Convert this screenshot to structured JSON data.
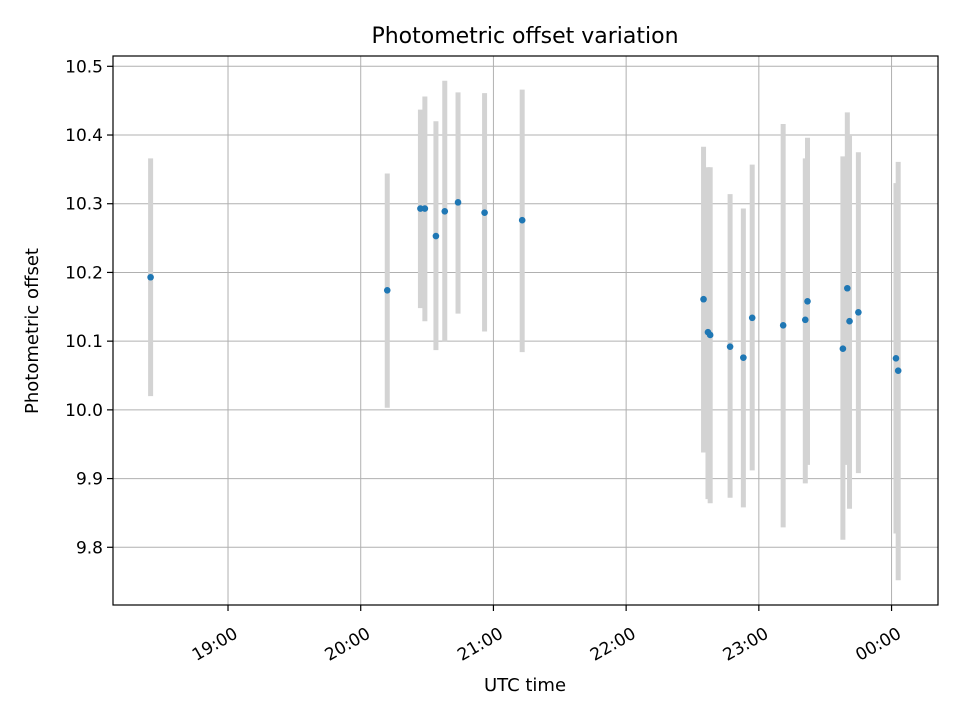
{
  "chart_data": {
    "type": "scatter",
    "title": "Photometric offset variation",
    "xlabel": "UTC time",
    "ylabel": "Photometric offset",
    "x_format": "HH:MM",
    "xlim": [
      "18:08",
      "00:21"
    ],
    "ylim": [
      9.716,
      10.515
    ],
    "x_ticks": [
      "19:00",
      "20:00",
      "21:00",
      "22:00",
      "23:00",
      "00:00"
    ],
    "y_ticks": [
      9.8,
      9.9,
      10.0,
      10.1,
      10.2,
      10.3,
      10.4,
      10.5
    ],
    "grid": true,
    "colors": {
      "points": "#1f77b4",
      "errorbars": "#d3d3d3"
    },
    "points": [
      {
        "x": "18:25",
        "y": 10.193,
        "lo": 10.02,
        "hi": 10.366
      },
      {
        "x": "20:12",
        "y": 10.174,
        "lo": 10.003,
        "hi": 10.344
      },
      {
        "x": "20:27",
        "y": 10.293,
        "lo": 10.148,
        "hi": 10.437
      },
      {
        "x": "20:29",
        "y": 10.293,
        "lo": 10.129,
        "hi": 10.456
      },
      {
        "x": "20:34",
        "y": 10.253,
        "lo": 10.087,
        "hi": 10.42
      },
      {
        "x": "20:38",
        "y": 10.289,
        "lo": 10.099,
        "hi": 10.479
      },
      {
        "x": "20:44",
        "y": 10.302,
        "lo": 10.14,
        "hi": 10.462
      },
      {
        "x": "20:56",
        "y": 10.287,
        "lo": 10.114,
        "hi": 10.461
      },
      {
        "x": "21:13",
        "y": 10.276,
        "lo": 10.084,
        "hi": 10.466
      },
      {
        "x": "22:35",
        "y": 10.161,
        "lo": 9.938,
        "hi": 10.383
      },
      {
        "x": "22:37",
        "y": 10.113,
        "lo": 9.87,
        "hi": 10.353
      },
      {
        "x": "22:38",
        "y": 10.109,
        "lo": 9.864,
        "hi": 10.353
      },
      {
        "x": "22:47",
        "y": 10.092,
        "lo": 9.872,
        "hi": 10.314
      },
      {
        "x": "22:53",
        "y": 10.076,
        "lo": 9.858,
        "hi": 10.293
      },
      {
        "x": "22:57",
        "y": 10.134,
        "lo": 9.912,
        "hi": 10.357
      },
      {
        "x": "23:11",
        "y": 10.123,
        "lo": 9.829,
        "hi": 10.416
      },
      {
        "x": "23:21",
        "y": 10.131,
        "lo": 9.893,
        "hi": 10.366
      },
      {
        "x": "23:22",
        "y": 10.158,
        "lo": 9.92,
        "hi": 10.396
      },
      {
        "x": "23:38",
        "y": 10.089,
        "lo": 9.811,
        "hi": 10.369
      },
      {
        "x": "23:40",
        "y": 10.177,
        "lo": 9.92,
        "hi": 10.433
      },
      {
        "x": "23:41",
        "y": 10.129,
        "lo": 9.856,
        "hi": 10.4
      },
      {
        "x": "23:45",
        "y": 10.142,
        "lo": 9.908,
        "hi": 10.375
      },
      {
        "x": "00:02",
        "y": 10.075,
        "lo": 9.82,
        "hi": 10.33
      },
      {
        "x": "00:03",
        "y": 10.057,
        "lo": 9.752,
        "hi": 10.361
      }
    ]
  }
}
